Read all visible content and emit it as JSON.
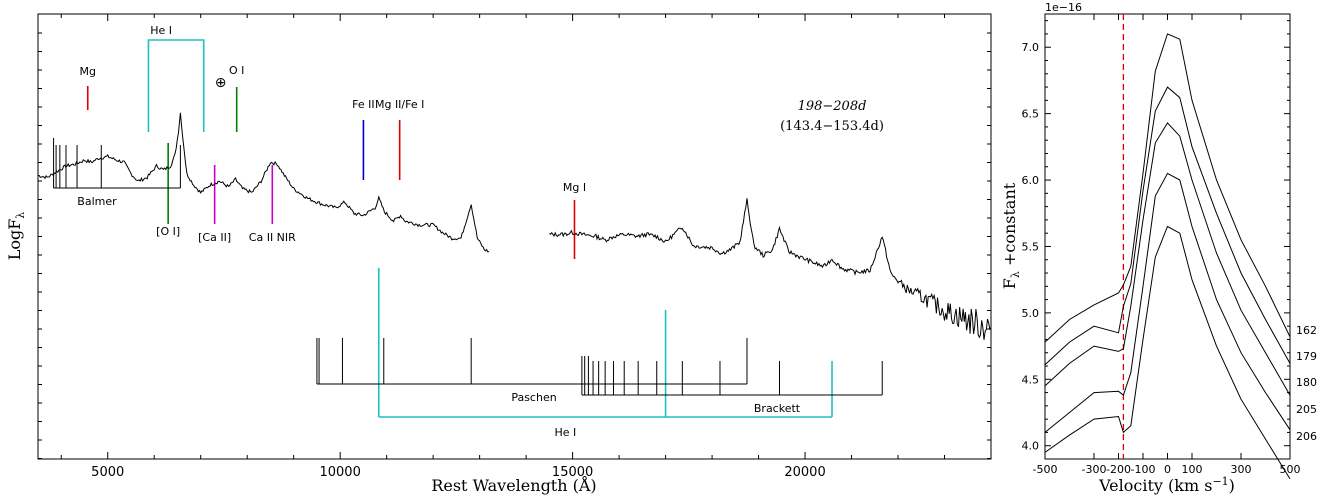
{
  "chart_data": [
    {
      "type": "line",
      "xlabel": "Rest Wavelength (Å)",
      "ylabel": "LogF",
      "ylabel_sub": "λ",
      "xlim": [
        3500,
        24000
      ],
      "xticks": [
        5000,
        10000,
        15000,
        20000
      ],
      "epoch_label": "198−208d",
      "epoch_label_2": "(143.4−153.4d)",
      "line_ids": [
        {
          "label": "Mg",
          "x": 4570,
          "color": "#e00000"
        },
        {
          "label": "⊕",
          "x": 7600,
          "color": "#000000"
        },
        {
          "label": "O I",
          "x": 7774,
          "color": "#008000"
        },
        {
          "label": "Fe II",
          "x": 10500,
          "color": "#0000cc"
        },
        {
          "label": "Mg II/Fe I",
          "x": 11280,
          "color": "#e00000"
        },
        {
          "label": "[O I]",
          "x": 6300,
          "color": "#008000"
        },
        {
          "label": "[Ca II]",
          "x": 7300,
          "color": "#cc00cc"
        },
        {
          "label": "Ca II NIR",
          "x": 8540,
          "color": "#cc00cc"
        },
        {
          "label": "Mg I",
          "x": 15040,
          "color": "#e00000"
        }
      ],
      "he_label": "He I",
      "he_color": "#20c0c0",
      "he_lines_optical": [
        5876,
        7065
      ],
      "he_lines_nir": [
        10830,
        17000,
        20580
      ],
      "balmer_label": "Balmer",
      "balmer_lines": [
        3835,
        3889,
        3970,
        4102,
        4340,
        4861,
        6563
      ],
      "paschen_label": "Paschen",
      "paschen_lines": [
        9546,
        10049,
        10938,
        12818,
        18751
      ],
      "brackett_label": "Brackett",
      "brackett_lines": [
        15200,
        15260,
        15340,
        15440,
        15560,
        15700,
        15880,
        16110,
        16410,
        16810,
        17360,
        18170,
        19450,
        21660
      ],
      "spectrum_optical": [
        [
          3500,
          0.55
        ],
        [
          3700,
          0.54
        ],
        [
          3900,
          0.57
        ],
        [
          4100,
          0.6
        ],
        [
          4300,
          0.61
        ],
        [
          4500,
          0.63
        ],
        [
          4650,
          0.62
        ],
        [
          4800,
          0.64
        ],
        [
          5000,
          0.65
        ],
        [
          5200,
          0.63
        ],
        [
          5350,
          0.62
        ],
        [
          5500,
          0.56
        ],
        [
          5650,
          0.52
        ],
        [
          5850,
          0.54
        ],
        [
          6050,
          0.6
        ],
        [
          6200,
          0.58
        ],
        [
          6350,
          0.6
        ],
        [
          6450,
          0.66
        ],
        [
          6520,
          0.78
        ],
        [
          6563,
          0.88
        ],
        [
          6620,
          0.74
        ],
        [
          6700,
          0.56
        ],
        [
          6850,
          0.5
        ],
        [
          7000,
          0.46
        ],
        [
          7200,
          0.5
        ],
        [
          7400,
          0.52
        ],
        [
          7600,
          0.49
        ],
        [
          7750,
          0.53
        ],
        [
          7900,
          0.48
        ],
        [
          8100,
          0.46
        ],
        [
          8300,
          0.52
        ],
        [
          8500,
          0.62
        ],
        [
          8650,
          0.61
        ],
        [
          8800,
          0.55
        ],
        [
          9000,
          0.48
        ],
        [
          9300,
          0.43
        ],
        [
          9600,
          0.4
        ],
        [
          9900,
          0.38
        ],
        [
          10100,
          0.41
        ],
        [
          10300,
          0.35
        ],
        [
          10500,
          0.34
        ],
        [
          10750,
          0.38
        ],
        [
          10830,
          0.43
        ],
        [
          10950,
          0.36
        ],
        [
          11150,
          0.31
        ],
        [
          11300,
          0.34
        ],
        [
          11400,
          0.31
        ],
        [
          11700,
          0.29
        ],
        [
          12000,
          0.29
        ],
        [
          12200,
          0.25
        ],
        [
          12400,
          0.22
        ],
        [
          12600,
          0.22
        ],
        [
          12818,
          0.4
        ],
        [
          12950,
          0.22
        ],
        [
          13100,
          0.16
        ],
        [
          13200,
          0.15
        ]
      ],
      "spectrum_nir": [
        [
          14500,
          0.24
        ],
        [
          14800,
          0.24
        ],
        [
          15000,
          0.25
        ],
        [
          15200,
          0.24
        ],
        [
          15500,
          0.23
        ],
        [
          15700,
          0.21
        ],
        [
          15900,
          0.23
        ],
        [
          16100,
          0.24
        ],
        [
          16400,
          0.23
        ],
        [
          16600,
          0.24
        ],
        [
          16800,
          0.23
        ],
        [
          17000,
          0.2
        ],
        [
          17360,
          0.28
        ],
        [
          17600,
          0.18
        ],
        [
          18000,
          0.17
        ],
        [
          18200,
          0.14
        ],
        [
          18400,
          0.16
        ],
        [
          18600,
          0.2
        ],
        [
          18751,
          0.42
        ],
        [
          18900,
          0.18
        ],
        [
          19100,
          0.13
        ],
        [
          19300,
          0.16
        ],
        [
          19450,
          0.27
        ],
        [
          19650,
          0.15
        ],
        [
          19900,
          0.12
        ],
        [
          20200,
          0.09
        ],
        [
          20400,
          0.07
        ],
        [
          20580,
          0.11
        ],
        [
          20800,
          0.06
        ],
        [
          21100,
          0.04
        ],
        [
          21400,
          0.05
        ],
        [
          21660,
          0.23
        ],
        [
          21850,
          0.03
        ],
        [
          22200,
          -0.05
        ],
        [
          22600,
          -0.1
        ],
        [
          23000,
          -0.16
        ],
        [
          23400,
          -0.2
        ],
        [
          23800,
          -0.24
        ],
        [
          24000,
          -0.25
        ]
      ]
    },
    {
      "type": "line",
      "xlabel": "Velocity (km s",
      "xlabel_sup": "−1",
      "ylabel": "F",
      "ylabel_sub": "λ",
      "ylabel_tail": " +constant",
      "exponent_label": "1e−16",
      "xlim": [
        -500,
        500
      ],
      "ylim": [
        3.9,
        7.25
      ],
      "xtick_labels": [
        {
          "v": -500,
          "t": "-500"
        },
        {
          "v": -300,
          "t": "-300"
        },
        {
          "v": -200,
          "t": "-200"
        },
        {
          "v": -100,
          "t": "-100"
        },
        {
          "v": 0,
          "t": "0"
        },
        {
          "v": 100,
          "t": "100"
        },
        {
          "v": 300,
          "t": "300"
        },
        {
          "v": 500,
          "t": "500"
        }
      ],
      "yticks": [
        4.0,
        4.5,
        5.0,
        5.5,
        6.0,
        6.5,
        7.0
      ],
      "ytick_labels": [
        "4.0",
        "4.5",
        "5.0",
        "5.5",
        "6.0",
        "6.5",
        "7.0"
      ],
      "marker_velocity": -180,
      "marker_color": "#e00000",
      "series": [
        {
          "name": "162",
          "x": [
            -500,
            -400,
            -300,
            -200,
            -180,
            -150,
            -100,
            -50,
            0,
            50,
            100,
            200,
            300,
            400,
            500
          ],
          "y": [
            4.78,
            4.95,
            5.06,
            5.15,
            5.21,
            5.35,
            6.05,
            6.82,
            7.1,
            7.06,
            6.6,
            6.0,
            5.55,
            5.2,
            4.82
          ]
        },
        {
          "name": "179",
          "x": [
            -500,
            -400,
            -300,
            -200,
            -180,
            -150,
            -100,
            -50,
            0,
            50,
            100,
            200,
            300,
            400,
            500
          ],
          "y": [
            4.61,
            4.78,
            4.9,
            4.85,
            5.05,
            5.22,
            5.92,
            6.52,
            6.7,
            6.62,
            6.25,
            5.75,
            5.3,
            4.95,
            4.62
          ]
        },
        {
          "name": "180",
          "x": [
            -500,
            -400,
            -300,
            -200,
            -180,
            -150,
            -100,
            -50,
            0,
            50,
            100,
            200,
            300,
            400,
            500
          ],
          "y": [
            4.45,
            4.62,
            4.75,
            4.71,
            4.73,
            5.05,
            5.7,
            6.28,
            6.43,
            6.33,
            6.0,
            5.45,
            5.02,
            4.7,
            4.38
          ]
        },
        {
          "name": "205",
          "x": [
            -500,
            -400,
            -300,
            -200,
            -180,
            -150,
            -100,
            -50,
            0,
            50,
            100,
            200,
            300,
            400,
            500
          ],
          "y": [
            4.1,
            4.25,
            4.4,
            4.41,
            4.38,
            4.55,
            5.2,
            5.88,
            6.05,
            6.0,
            5.65,
            5.1,
            4.7,
            4.4,
            4.12
          ]
        },
        {
          "name": "206",
          "x": [
            -500,
            -400,
            -300,
            -200,
            -180,
            -150,
            -100,
            -50,
            0,
            50,
            100,
            200,
            300,
            400,
            500
          ],
          "y": [
            3.95,
            4.08,
            4.2,
            4.22,
            4.1,
            4.15,
            4.8,
            5.42,
            5.65,
            5.6,
            5.25,
            4.75,
            4.35,
            4.05,
            3.75
          ]
        }
      ]
    }
  ]
}
